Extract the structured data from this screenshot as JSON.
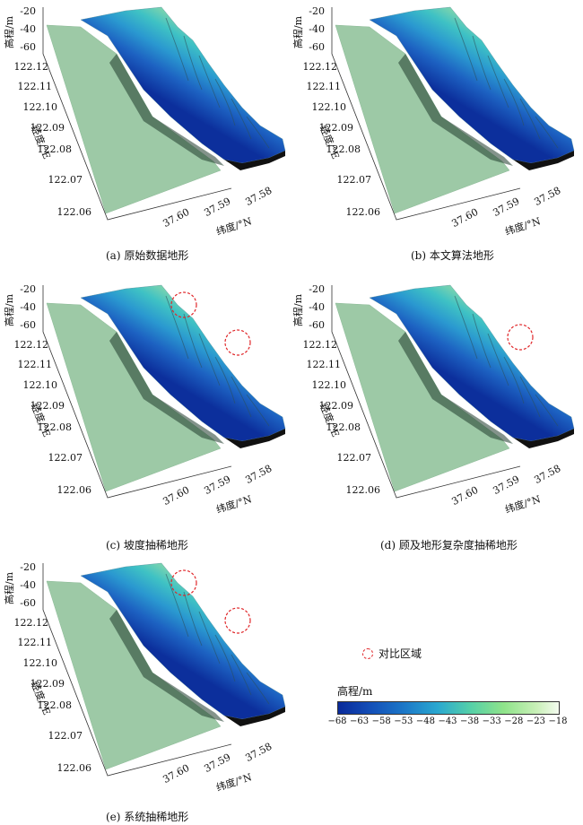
{
  "panels": [
    {
      "caption": "(a) 原始数据地形",
      "circles": 0
    },
    {
      "caption": "(b) 本文算法地形",
      "circles": 0
    },
    {
      "caption": "(c) 坡度抽稀地形",
      "circles": 2
    },
    {
      "caption": "(d) 顾及地形复杂度抽稀地形",
      "circles": 1
    },
    {
      "caption": "(e) 系统抽稀地形",
      "circles": 2
    }
  ],
  "chart_data": {
    "type": "surface",
    "z_label": "高程/m",
    "z_ticks": [
      "-20",
      "-40",
      "-60"
    ],
    "lon_label": "经度/°E",
    "lon_ticks": [
      "122.12",
      "122.11",
      "122.10",
      "122.09",
      "122.08",
      "122.07",
      "122.06"
    ],
    "lat_label": "纬度/°N",
    "lat_ticks": [
      "37.60",
      "37.59",
      "37.58"
    ]
  },
  "legend": {
    "compare_label": "对比区域"
  },
  "colorbar": {
    "title": "高程/m",
    "ticks": [
      "−68",
      "−63",
      "−58",
      "−53",
      "−48",
      "−43",
      "−38",
      "−33",
      "−28",
      "−23",
      "−18"
    ],
    "range": [
      -68,
      -18
    ]
  }
}
